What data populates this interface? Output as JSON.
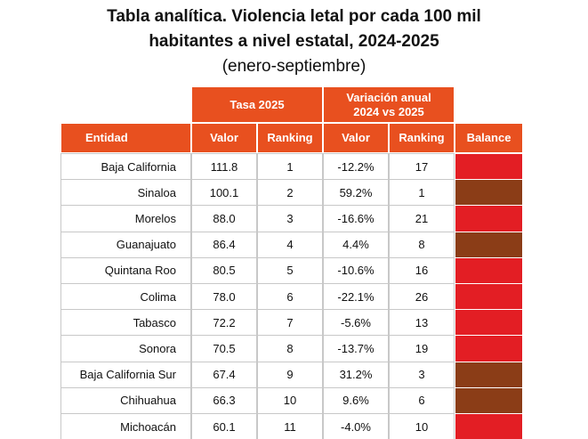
{
  "header": {
    "title_line1": "Tabla analítica. Violencia letal por cada 100 mil",
    "title_line2": "habitantes a nivel estatal, 2024-2025",
    "subtitle": "(enero-septiembre)"
  },
  "table": {
    "groups": [
      "Tasa 2025",
      "Variación anual 2024 vs 2025"
    ],
    "columns": [
      "Entidad",
      "Valor",
      "Ranking",
      "Valor",
      "Ranking",
      "Balance"
    ],
    "rows": [
      [
        "Baja California",
        "111.8",
        "1",
        "-12.2%",
        "17"
      ],
      [
        "Sinaloa",
        "100.1",
        "2",
        "59.2%",
        "1"
      ],
      [
        "Morelos",
        "88.0",
        "3",
        "-16.6%",
        "21"
      ],
      [
        "Guanajuato",
        "86.4",
        "4",
        "4.4%",
        "8"
      ],
      [
        "Quintana Roo",
        "80.5",
        "5",
        "-10.6%",
        "16"
      ],
      [
        "Colima",
        "78.0",
        "6",
        "-22.1%",
        "26"
      ],
      [
        "Tabasco",
        "72.2",
        "7",
        "-5.6%",
        "13"
      ],
      [
        "Sonora",
        "70.5",
        "8",
        "-13.7%",
        "19"
      ],
      [
        "Baja California Sur",
        "67.4",
        "9",
        "31.2%",
        "3"
      ],
      [
        "Chihuahua",
        "66.3",
        "10",
        "9.6%",
        "6"
      ],
      [
        "Michoacán",
        "60.1",
        "11",
        "-4.0%",
        "10"
      ]
    ],
    "balance_colors": [
      "#e31e24",
      "#8b3d17",
      "#e31e24",
      "#8b3d17",
      "#e31e24",
      "#e31e24",
      "#e31e24",
      "#e31e24",
      "#8b3d17",
      "#8b3d17",
      "#e31e24"
    ]
  }
}
